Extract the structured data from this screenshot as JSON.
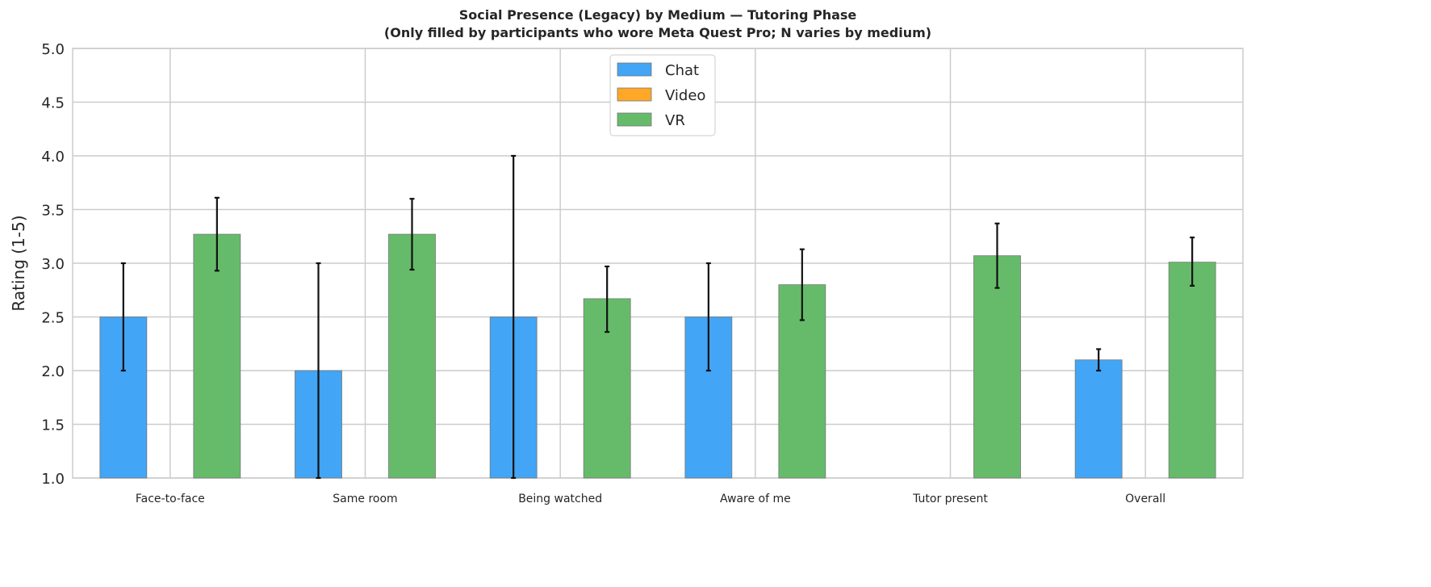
{
  "chart_data": {
    "type": "bar",
    "title": "Social Presence (Legacy) by Medium — Tutoring Phase",
    "subtitle": "(Only filled by participants who wore Meta Quest Pro; N varies by medium)",
    "xlabel": "",
    "ylabel": "Rating (1-5)",
    "ylim": [
      1.0,
      5.0
    ],
    "yticks": [
      "1.0",
      "1.5",
      "2.0",
      "2.5",
      "3.0",
      "3.5",
      "4.0",
      "4.5",
      "5.0"
    ],
    "grid": true,
    "legend_position": "top-center",
    "categories": [
      "Face-to-face",
      "Same room",
      "Being watched",
      "Aware of me",
      "Tutor present",
      "Overall"
    ],
    "series": [
      {
        "name": "Chat",
        "color": "#42a5f5",
        "values": [
          2.5,
          2.0,
          2.5,
          2.5,
          null,
          2.1
        ],
        "err_low": [
          2.0,
          1.0,
          1.0,
          2.0,
          null,
          2.0
        ],
        "err_high": [
          3.0,
          3.0,
          4.0,
          3.0,
          null,
          2.2
        ]
      },
      {
        "name": "Video",
        "color": "#ffa726",
        "values": [
          null,
          null,
          null,
          null,
          null,
          null
        ],
        "err_low": [
          null,
          null,
          null,
          null,
          null,
          null
        ],
        "err_high": [
          null,
          null,
          null,
          null,
          null,
          null
        ]
      },
      {
        "name": "VR",
        "color": "#66bb6a",
        "values": [
          3.27,
          3.27,
          2.67,
          2.8,
          3.07,
          3.01
        ],
        "err_low": [
          2.93,
          2.94,
          2.36,
          2.47,
          2.77,
          2.79
        ],
        "err_high": [
          3.61,
          3.6,
          2.97,
          3.13,
          3.37,
          3.24
        ]
      }
    ]
  }
}
